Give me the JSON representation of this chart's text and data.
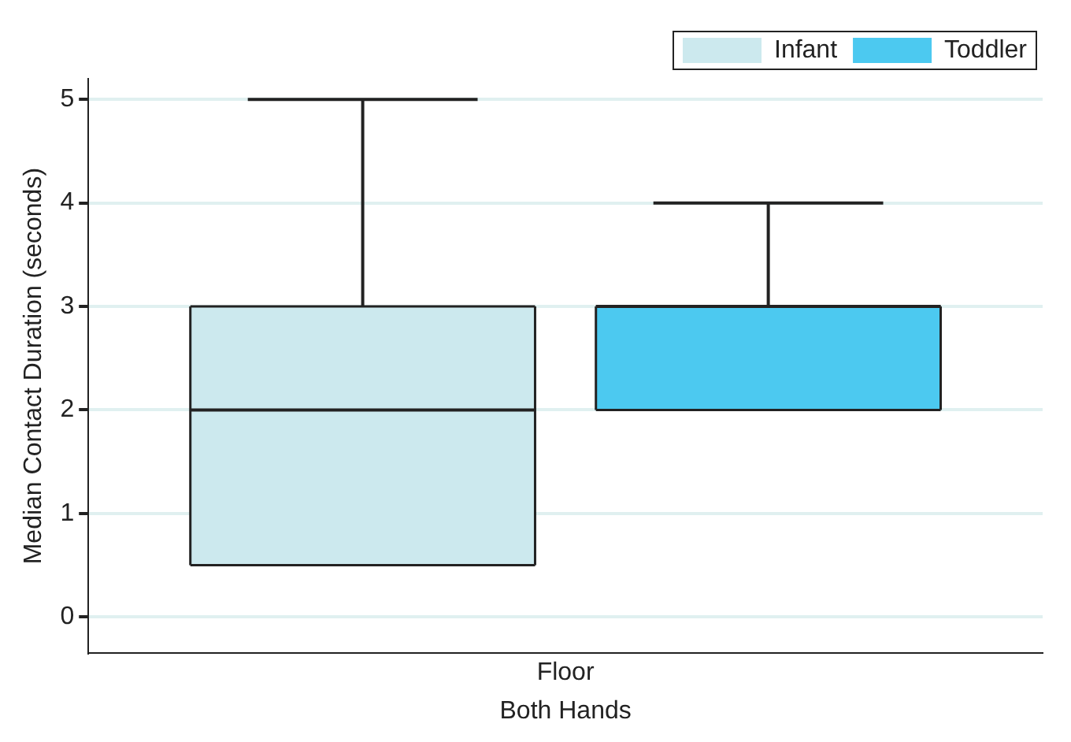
{
  "chart_data": {
    "type": "box",
    "categories": [
      "Floor"
    ],
    "xlabel": "Both Hands",
    "ylabel": "Median Contact Duration (seconds)",
    "series": [
      {
        "name": "Infant",
        "color": "#cce9ee",
        "boxes": [
          {
            "low": 0.5,
            "q1": 0.5,
            "median": 2,
            "q3": 3,
            "high": 5
          }
        ]
      },
      {
        "name": "Toddler",
        "color": "#4cc9f0",
        "boxes": [
          {
            "low": 2,
            "q1": 2,
            "median": 3,
            "q3": 3,
            "high": 4
          }
        ]
      }
    ],
    "ylim": [
      -0.35,
      5.2
    ],
    "yticks": [
      0,
      1,
      2,
      3,
      4,
      5
    ],
    "grid": "y",
    "legend": "top right"
  }
}
